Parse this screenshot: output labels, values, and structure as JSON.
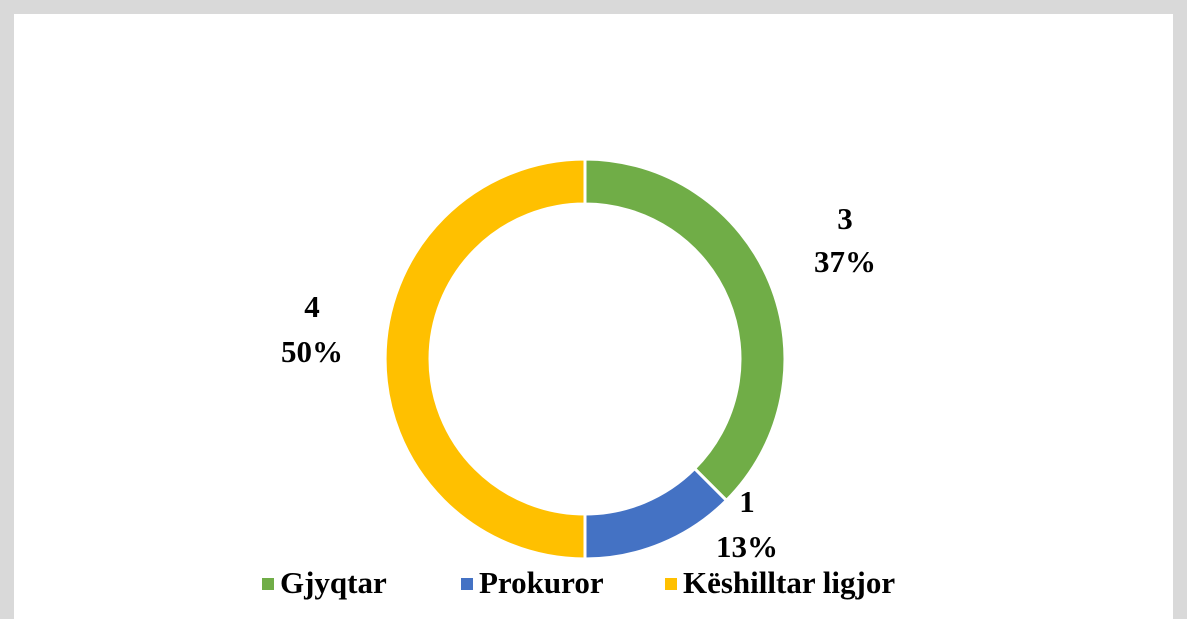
{
  "chart_data": {
    "type": "donut",
    "categories": [
      "Gjyqtar",
      "Prokuror",
      "Këshilltar ligjor"
    ],
    "values": [
      3,
      1,
      4
    ],
    "percent_labels": [
      "37%",
      "13%",
      "50%"
    ],
    "colors": [
      "#70ad47",
      "#4472c4",
      "#ffc000"
    ],
    "legend": "bottom"
  }
}
